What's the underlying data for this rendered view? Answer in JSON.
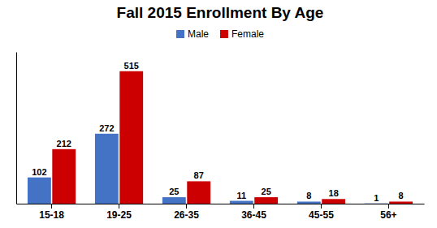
{
  "chart_data": {
    "type": "bar",
    "title": "Fall 2015 Enrollment By Age",
    "categories": [
      "15-18",
      "19-25",
      "26-35",
      "36-45",
      "45-55",
      "56+"
    ],
    "series": [
      {
        "name": "Male",
        "color": "#4472C4",
        "values": [
          102,
          272,
          25,
          11,
          8,
          1
        ]
      },
      {
        "name": "Female",
        "color": "#CC0000",
        "values": [
          212,
          515,
          87,
          25,
          18,
          8
        ]
      }
    ],
    "ylim": [
      0,
      590
    ],
    "data_labels": true,
    "tick_labels": "x",
    "legend": "upper center",
    "grid": false
  }
}
